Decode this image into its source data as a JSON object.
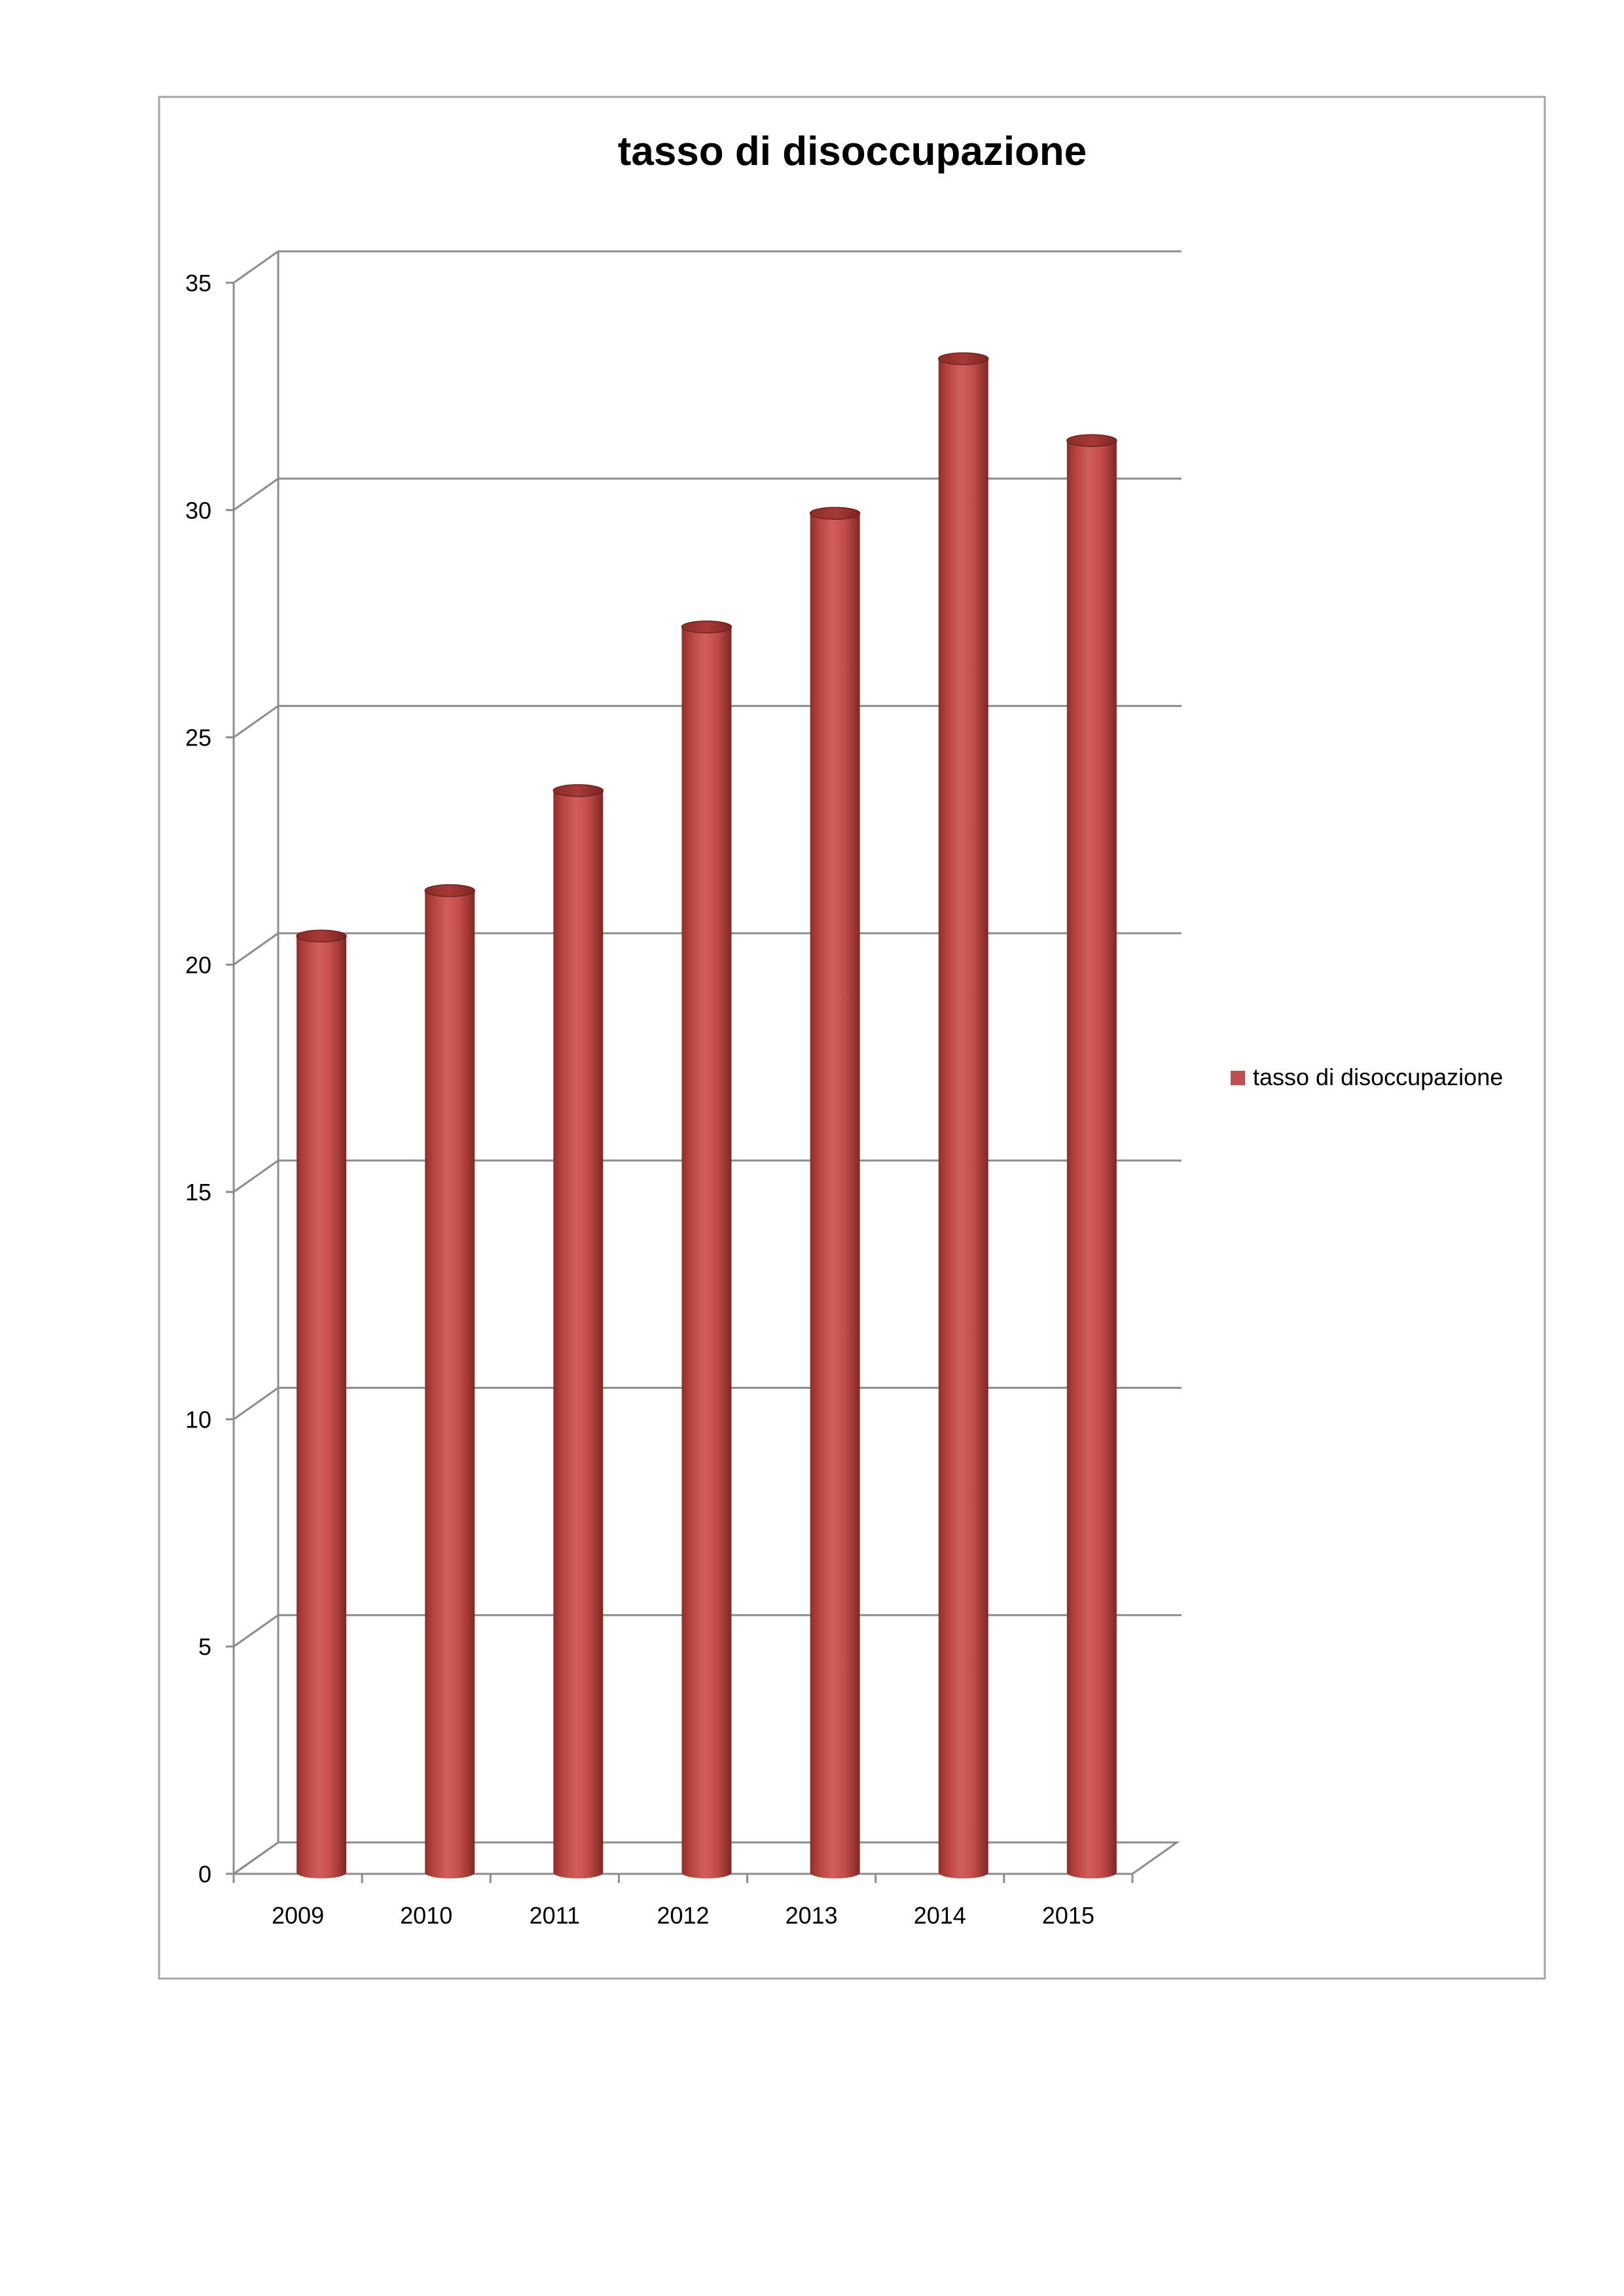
{
  "chart_data": {
    "type": "bar",
    "title": "tasso di disoccupazione",
    "xlabel": "",
    "ylabel": "",
    "categories": [
      "2009",
      "2010",
      "2011",
      "2012",
      "2013",
      "2014",
      "2015"
    ],
    "series": [
      {
        "name": "tasso di disoccupazione",
        "values": [
          20.6,
          21.6,
          23.8,
          27.4,
          29.9,
          33.3,
          31.5
        ],
        "color": "#c0504d"
      }
    ],
    "ylim": [
      0,
      35
    ],
    "yticks": [
      "0",
      "5",
      "10",
      "15",
      "20",
      "25",
      "30",
      "35"
    ],
    "grid": true,
    "legend": "right",
    "style": "3d-cylinder"
  }
}
